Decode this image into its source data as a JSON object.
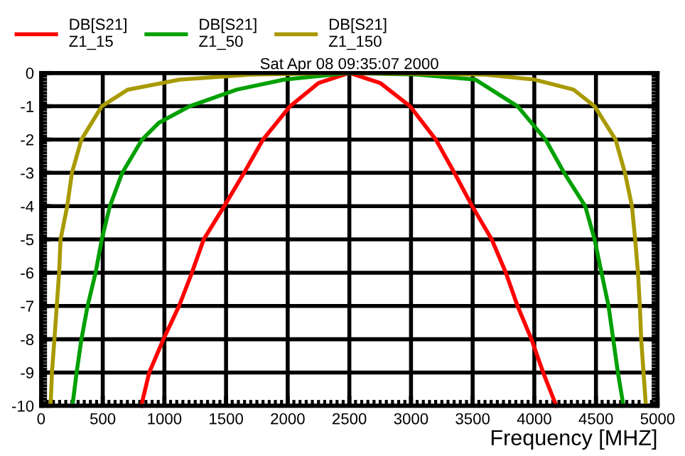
{
  "chart_data": {
    "type": "line",
    "title": "Sat Apr 08 09:35:07 2000",
    "xlabel": "Frequency [MHZ]",
    "xlim": [
      0,
      5000
    ],
    "xticks": [
      0,
      500,
      1000,
      1500,
      2000,
      2500,
      3000,
      3500,
      4000,
      4500,
      5000
    ],
    "ylim": [
      -10,
      0
    ],
    "yticks": [
      0,
      -1,
      -2,
      -3,
      -4,
      -5,
      -6,
      -7,
      -8,
      -9,
      -10
    ],
    "grid": true,
    "legend": "top left",
    "line_style": "solid",
    "series": [
      {
        "name": "DB[S21]\nZ1_15",
        "color": "#ff0000",
        "x": [
          812,
          877,
          992,
          1119,
          1223,
          1319,
          1485,
          1646,
          1800,
          2019,
          2250,
          2500,
          2750,
          2993,
          3201,
          3352,
          3496,
          3655,
          3769,
          3864,
          3977,
          4072,
          4178
        ],
        "values": [
          -10,
          -9,
          -8,
          -7,
          -6,
          -5,
          -4,
          -3,
          -2,
          -1,
          -0.3,
          0,
          -0.3,
          -1,
          -2,
          -3,
          -4,
          -5,
          -6,
          -7,
          -8,
          -9,
          -10
        ]
      },
      {
        "name": "DB[S21]\nZ1_50",
        "color": "#00a000",
        "x": [
          254,
          288,
          327,
          377,
          442,
          492,
          558,
          658,
          819,
          954,
          1204,
          1588,
          1973,
          2500,
          3050,
          3523,
          3864,
          4091,
          4242,
          4413,
          4489,
          4545,
          4602,
          4640,
          4678,
          4723
        ],
        "values": [
          -10,
          -9,
          -8,
          -7,
          -6,
          -5,
          -4,
          -3,
          -2,
          -1.5,
          -1,
          -0.5,
          -0.2,
          0,
          -0.05,
          -0.2,
          -1,
          -2,
          -3,
          -4,
          -5,
          -6,
          -7,
          -8,
          -9,
          -10
        ]
      },
      {
        "name": "DB[S21]\nZ1_150",
        "color": "#a89a00",
        "x": [
          77,
          88,
          108,
          127,
          146,
          158,
          212,
          250,
          327,
          492,
          704,
          1127,
          1700,
          2500,
          3600,
          4000,
          4318,
          4489,
          4659,
          4735,
          4792,
          4818,
          4841,
          4856,
          4867,
          4886,
          4905
        ],
        "values": [
          -10,
          -9,
          -8,
          -7,
          -6,
          -5,
          -4,
          -3,
          -2,
          -1,
          -0.5,
          -0.2,
          -0.05,
          0,
          -0.05,
          -0.2,
          -0.5,
          -1,
          -2,
          -3,
          -4,
          -5,
          -6,
          -7,
          -8,
          -9,
          -10
        ]
      }
    ]
  }
}
